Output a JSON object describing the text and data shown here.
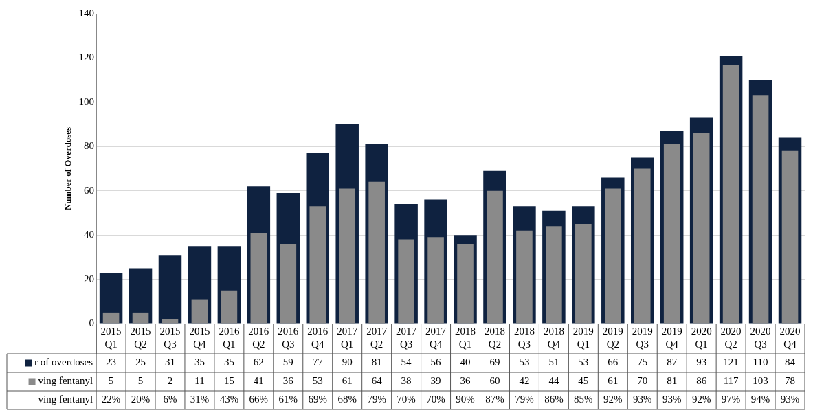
{
  "chart_data": {
    "type": "bar",
    "ylabel": "Number of Overdoses",
    "categories": [
      "2015 Q1",
      "2015 Q2",
      "2015 Q3",
      "2015 Q4",
      "2016 Q1",
      "2016 Q2",
      "2016 Q3",
      "2016 Q4",
      "2017 Q1",
      "2017 Q2",
      "2017 Q3",
      "2017 Q4",
      "2018 Q1",
      "2018 Q2",
      "2018 Q3",
      "2018 Q4",
      "2019 Q1",
      "2019 Q2",
      "2019 Q3",
      "2019 Q4",
      "2020 Q1",
      "2020 Q2",
      "2020 Q3",
      "2020 Q4"
    ],
    "series": [
      {
        "name": "r of overdoses",
        "color": "#0f2240",
        "values": [
          23,
          25,
          31,
          35,
          35,
          62,
          59,
          77,
          90,
          81,
          54,
          56,
          40,
          69,
          53,
          51,
          53,
          66,
          75,
          87,
          93,
          121,
          110,
          84
        ]
      },
      {
        "name": "ving fentanyl",
        "color": "#8a8a8a",
        "values": [
          5,
          5,
          2,
          11,
          15,
          41,
          36,
          53,
          61,
          64,
          38,
          39,
          36,
          60,
          42,
          44,
          45,
          61,
          70,
          81,
          86,
          117,
          103,
          78
        ]
      }
    ],
    "annotations": [
      "ving fentanyl",
      "22%",
      "20%",
      "6%",
      "31%",
      "43%",
      "66%",
      "61%",
      "69%",
      "68%",
      "79%",
      "70%",
      "70%",
      "90%",
      "87%",
      "79%",
      "86%",
      "85%",
      "92%",
      "93%",
      "93%",
      "92%",
      "97%",
      "94%",
      "93%"
    ],
    "ylim": [
      0,
      140
    ],
    "yticks": [
      0,
      20,
      40,
      60,
      80,
      100,
      120,
      140
    ],
    "grid": "y",
    "data_labels": true,
    "legend": "bottom left"
  }
}
